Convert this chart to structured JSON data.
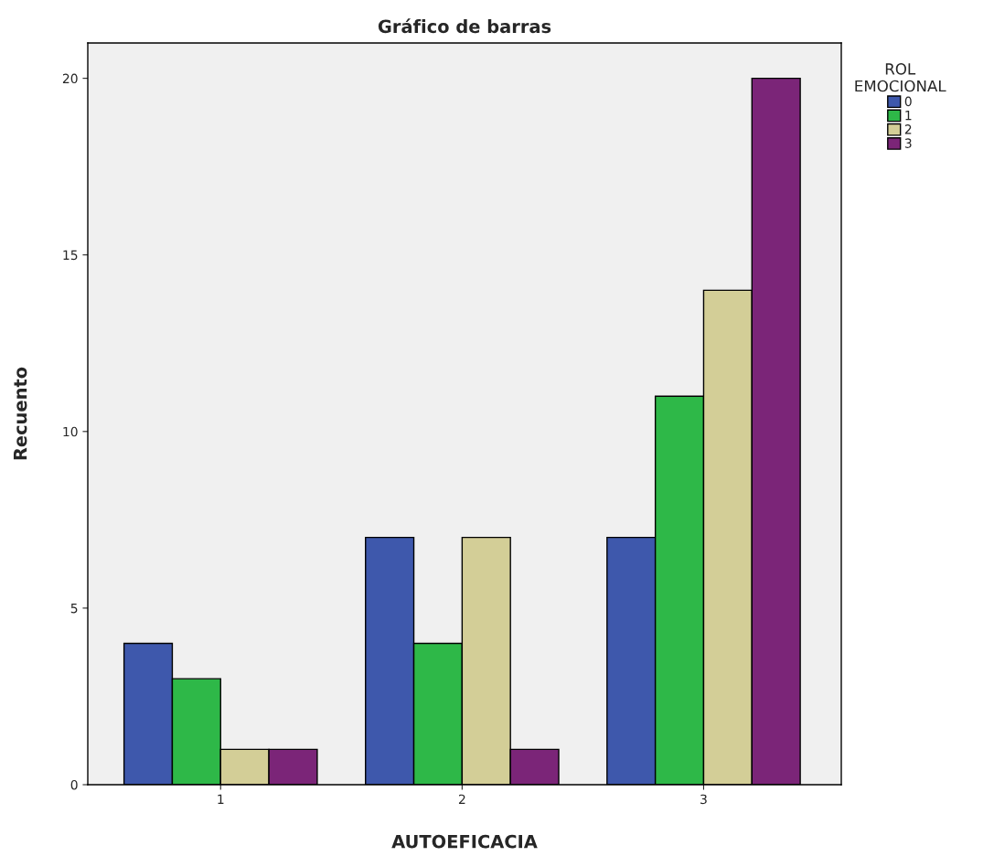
{
  "chart_data": {
    "type": "bar",
    "title": "Gráfico de barras",
    "xlabel": "AUTOEFICACIA",
    "ylabel": "Recuento",
    "legend_title": "ROL\nEMOCIONAL",
    "categories": [
      "1",
      "2",
      "3"
    ],
    "series": [
      {
        "name": "0",
        "color": "#3e58ac",
        "values": [
          4,
          7,
          7
        ]
      },
      {
        "name": "1",
        "color": "#2eb848",
        "values": [
          3,
          4,
          11
        ]
      },
      {
        "name": "2",
        "color": "#d3ce97",
        "values": [
          1,
          7,
          14
        ]
      },
      {
        "name": "3",
        "color": "#7b2578",
        "values": [
          1,
          1,
          20
        ]
      }
    ],
    "ylim": [
      0,
      21
    ],
    "yticks": [
      0,
      5,
      10,
      15,
      20
    ],
    "grid": false,
    "legend": "top right"
  }
}
